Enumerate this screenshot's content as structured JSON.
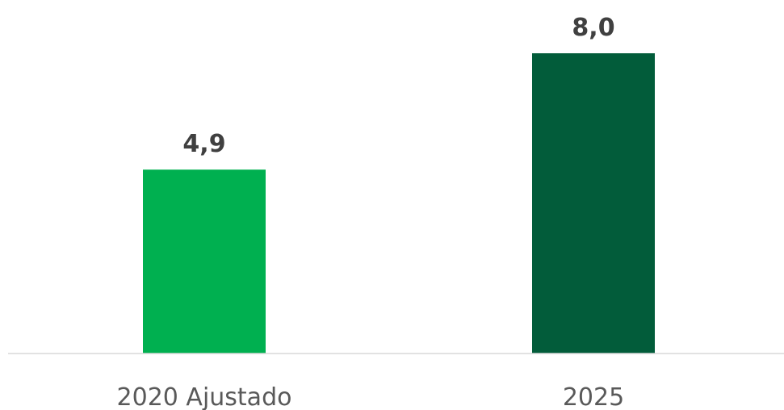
{
  "chart_data": {
    "type": "bar",
    "categories": [
      "2020 Ajustado",
      "2025"
    ],
    "values": [
      4.9,
      8.0
    ],
    "value_labels": [
      "4,9",
      "8,0"
    ],
    "colors": [
      "#00b050",
      "#025c3a"
    ]
  }
}
